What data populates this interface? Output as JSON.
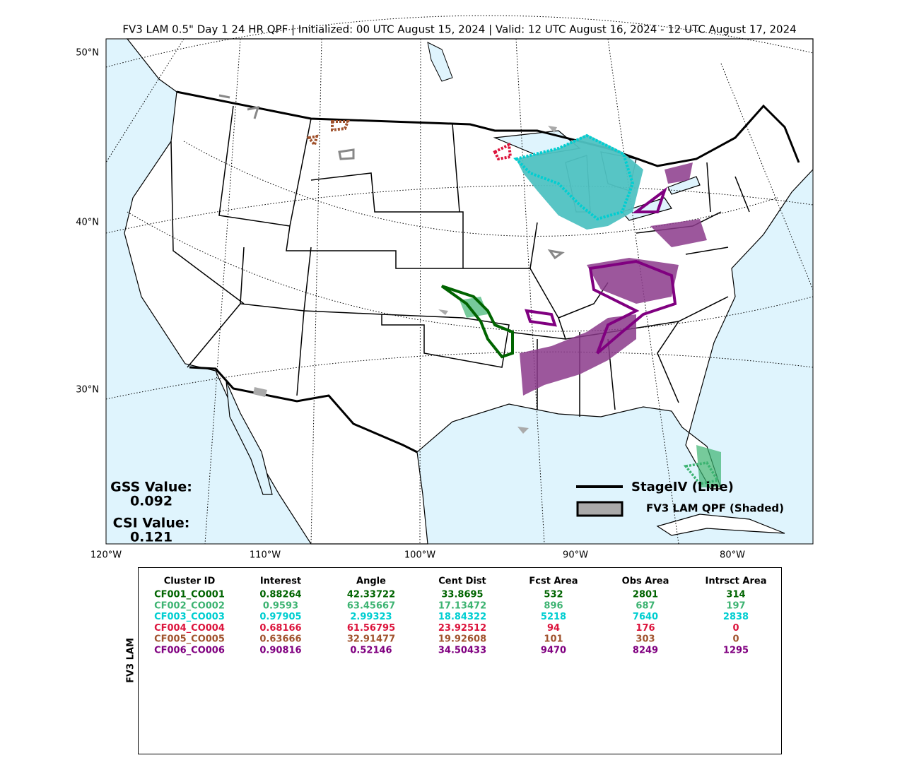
{
  "title": "FV3 LAM 0.5\" Day 1 24 HR QPF | Initialized: 00 UTC August 15, 2024 | Valid: 12 UTC August 16, 2024 - 12 UTC August 17, 2024",
  "map": {
    "lat_labels": [
      "50°N",
      "40°N",
      "30°N"
    ],
    "lon_labels": [
      "120°W",
      "110°W",
      "100°W",
      "90°W",
      "80°W"
    ],
    "scores": {
      "gss_label": "GSS Value:",
      "gss_value": "0.092",
      "csi_label": "CSI Value:",
      "csi_value": "0.121"
    },
    "legend": {
      "line": "StageIV (Line)",
      "shaded": "FV3 LAM QPF (Shaded)"
    }
  },
  "table": {
    "side_label": "FV3 LAM",
    "header": [
      "Cluster ID",
      "Interest",
      "Angle",
      "Cent Dist",
      "Fcst Area",
      "Obs Area",
      "Intrsct Area"
    ],
    "rows": [
      {
        "color": "#006400",
        "cells": [
          "CF001_CO001",
          "0.88264",
          "42.33722",
          "33.8695",
          "532",
          "2801",
          "314"
        ]
      },
      {
        "color": "#3cb371",
        "cells": [
          "CF002_CO002",
          "0.9593",
          "63.45667",
          "17.13472",
          "896",
          "687",
          "197"
        ]
      },
      {
        "color": "#00ced1",
        "cells": [
          "CF003_CO003",
          "0.97905",
          "2.99323",
          "18.84322",
          "5218",
          "7640",
          "2838"
        ]
      },
      {
        "color": "#dc143c",
        "cells": [
          "CF004_CO004",
          "0.68166",
          "61.56795",
          "23.92512",
          "94",
          "176",
          "0"
        ]
      },
      {
        "color": "#a0522d",
        "cells": [
          "CF005_CO005",
          "0.63666",
          "32.91477",
          "19.92608",
          "101",
          "303",
          "0"
        ]
      },
      {
        "color": "#800080",
        "cells": [
          "CF006_CO006",
          "0.90816",
          "0.52146",
          "34.50433",
          "9470",
          "8249",
          "1295"
        ]
      }
    ]
  }
}
